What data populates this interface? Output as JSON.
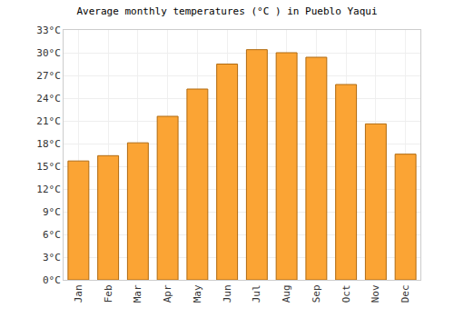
{
  "chart_data": {
    "type": "bar",
    "title": "Average monthly temperatures (°C ) in Pueblo Yaqui",
    "categories": [
      "Jan",
      "Feb",
      "Mar",
      "Apr",
      "May",
      "Jun",
      "Jul",
      "Aug",
      "Sep",
      "Oct",
      "Nov",
      "Dec"
    ],
    "values": [
      15.7,
      16.4,
      18.1,
      21.6,
      25.2,
      28.5,
      30.4,
      30.0,
      29.4,
      25.8,
      20.6,
      16.6
    ],
    "color": "#fba434",
    "ylim": [
      0,
      33
    ],
    "yticks": [
      {
        "value": 0,
        "label": "0°C"
      },
      {
        "value": 3,
        "label": "3°C"
      },
      {
        "value": 6,
        "label": "6°C"
      },
      {
        "value": 9,
        "label": "9°C"
      },
      {
        "value": 12,
        "label": "12°C"
      },
      {
        "value": 15,
        "label": "15°C"
      },
      {
        "value": 18,
        "label": "18°C"
      },
      {
        "value": 21,
        "label": "21°C"
      },
      {
        "value": 24,
        "label": "24°C"
      },
      {
        "value": 27,
        "label": "27°C"
      },
      {
        "value": 30,
        "label": "30°C"
      },
      {
        "value": 33,
        "label": "33°C"
      }
    ],
    "grid": true
  }
}
